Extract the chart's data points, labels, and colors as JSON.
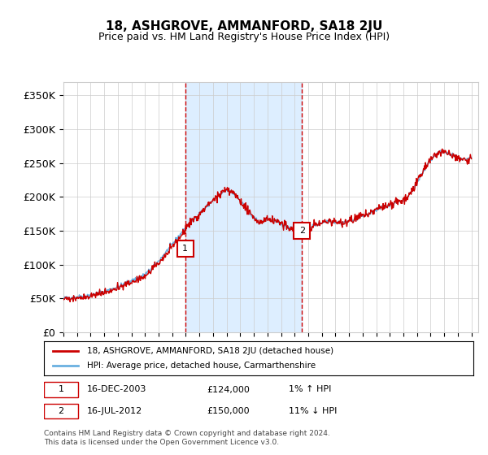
{
  "title": "18, ASHGROVE, AMMANFORD, SA18 2JU",
  "subtitle": "Price paid vs. HM Land Registry's House Price Index (HPI)",
  "ylabel_ticks": [
    "£0",
    "£50K",
    "£100K",
    "£150K",
    "£200K",
    "£250K",
    "£300K",
    "£350K"
  ],
  "ytick_values": [
    0,
    50000,
    100000,
    150000,
    200000,
    250000,
    300000,
    350000
  ],
  "ylim": [
    0,
    370000
  ],
  "xlim_start": 1995.0,
  "xlim_end": 2025.5,
  "x_years": [
    1995,
    1996,
    1997,
    1998,
    1999,
    2000,
    2001,
    2002,
    2003,
    2004,
    2005,
    2006,
    2007,
    2008,
    2009,
    2010,
    2011,
    2012,
    2013,
    2014,
    2015,
    2016,
    2017,
    2018,
    2019,
    2020,
    2021,
    2022,
    2023,
    2024,
    2025
  ],
  "hpi_color": "#6ab0e0",
  "price_color": "#cc0000",
  "sale1_date": 2003.96,
  "sale1_price": 124000,
  "sale1_label": "1",
  "sale2_date": 2012.54,
  "sale2_price": 150000,
  "sale2_label": "2",
  "shade_color": "#ddeeff",
  "vline_color": "#cc0000",
  "grid_color": "#cccccc",
  "bg_color": "#ffffff",
  "legend_label1": "18, ASHGROVE, AMMANFORD, SA18 2JU (detached house)",
  "legend_label2": "HPI: Average price, detached house, Carmarthenshire",
  "table_row1": [
    "1",
    "16-DEC-2003",
    "£124,000",
    "1% ↑ HPI"
  ],
  "table_row2": [
    "2",
    "16-JUL-2012",
    "£150,000",
    "11% ↓ HPI"
  ],
  "footnote": "Contains HM Land Registry data © Crown copyright and database right 2024.\nThis data is licensed under the Open Government Licence v3.0."
}
